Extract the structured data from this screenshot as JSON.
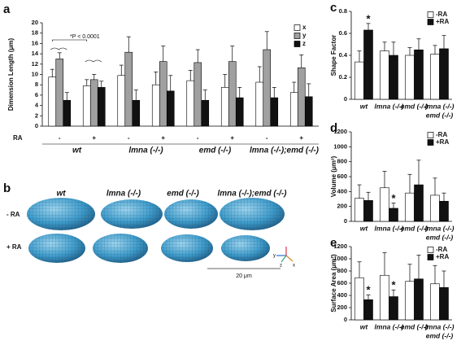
{
  "chart_data": [
    {
      "type": "bar",
      "label": "a",
      "ylabel": "Dimension Length (μm)",
      "ylim": [
        0,
        20
      ],
      "yticks": [
        0,
        2,
        4,
        6,
        8,
        10,
        12,
        14,
        16,
        18,
        20
      ],
      "groups": [
        "wt",
        "lmna (-/-)",
        "emd (-/-)",
        "lmna (-/-);emd (-/-)"
      ],
      "subcategories": [
        "-",
        "+"
      ],
      "subcategory_label": "RA",
      "annotation": "*P < 0.0001",
      "series": [
        {
          "name": "x",
          "color": "#ffffff",
          "values": [
            9.5,
            7.8,
            9.8,
            8,
            8.8,
            7.5,
            8.5,
            6.5
          ],
          "errors": [
            1.5,
            1.2,
            2,
            2.5,
            2,
            2.5,
            3,
            2
          ]
        },
        {
          "name": "y",
          "color": "#a0a0a0",
          "values": [
            13,
            9,
            14.3,
            12.5,
            12.3,
            12.5,
            14.8,
            11.3
          ],
          "errors": [
            1.2,
            1,
            3,
            3,
            2.5,
            3,
            3.5,
            2.5
          ]
        },
        {
          "name": "z",
          "color": "#111111",
          "values": [
            5,
            7.5,
            5,
            6.8,
            5,
            5.5,
            5.5,
            5.7
          ],
          "errors": [
            1.5,
            1.2,
            2,
            3,
            2,
            2,
            2,
            2.5
          ]
        }
      ]
    },
    {
      "type": "bar",
      "label": "c",
      "ylabel": "Shape Factor",
      "ylim": [
        0,
        0.8
      ],
      "yticks": [
        0,
        0.2,
        0.4,
        0.6,
        0.8
      ],
      "categories": [
        [
          "wt"
        ],
        [
          "lmna (-/-)"
        ],
        [
          "emd (-/-)"
        ],
        [
          "lmna (-/-)",
          "emd (-/-)"
        ]
      ],
      "series": [
        {
          "name": "-RA",
          "color": "#ffffff",
          "values": [
            0.34,
            0.44,
            0.4,
            0.41
          ],
          "errors": [
            0.1,
            0.08,
            0.07,
            0.08
          ],
          "significance": [
            null,
            null,
            null,
            null
          ]
        },
        {
          "name": "+RA",
          "color": "#111111",
          "values": [
            0.63,
            0.4,
            0.45,
            0.46
          ],
          "errors": [
            0.06,
            0.12,
            0.1,
            0.12
          ],
          "significance": [
            "*",
            null,
            null,
            null
          ]
        }
      ]
    },
    {
      "type": "bar",
      "label": "d",
      "ylabel": "Volume (μm³)",
      "ylim": [
        0,
        1200
      ],
      "yticks": [
        0,
        200,
        400,
        600,
        800,
        1000,
        1200
      ],
      "categories": [
        [
          "wt"
        ],
        [
          "lmna (-/-)"
        ],
        [
          "emd (-/-)"
        ],
        [
          "lmna (-/-)",
          "emd (-/-)"
        ]
      ],
      "series": [
        {
          "name": "-RA",
          "color": "#ffffff",
          "values": [
            310,
            450,
            380,
            350
          ],
          "errors": [
            180,
            220,
            250,
            230
          ],
          "significance": [
            null,
            null,
            null,
            null
          ]
        },
        {
          "name": "+RA",
          "color": "#111111",
          "values": [
            280,
            175,
            490,
            270
          ],
          "errors": [
            110,
            70,
            330,
            110
          ],
          "significance": [
            null,
            "*",
            null,
            null
          ]
        }
      ]
    },
    {
      "type": "bar",
      "label": "e",
      "ylabel": "Surface Area (μm²)",
      "ylim": [
        0,
        1200
      ],
      "yticks": [
        0,
        200,
        400,
        600,
        800,
        1000,
        1200
      ],
      "categories": [
        [
          "wt"
        ],
        [
          "lmna (-/-)"
        ],
        [
          "emd (-/-)"
        ],
        [
          "lmna (-/-)",
          "emd (-/-)"
        ]
      ],
      "series": [
        {
          "name": "-RA",
          "color": "#ffffff",
          "values": [
            690,
            730,
            630,
            590
          ],
          "errors": [
            260,
            370,
            280,
            300
          ],
          "significance": [
            null,
            null,
            null,
            null
          ]
        },
        {
          "name": "+RA",
          "color": "#111111",
          "values": [
            330,
            380,
            670,
            530
          ],
          "errors": [
            80,
            110,
            390,
            270
          ],
          "significance": [
            "*",
            "*",
            null,
            null
          ]
        }
      ]
    }
  ],
  "image_panel": {
    "label": "b",
    "columns": [
      "wt",
      "lmna (-/-)",
      "emd (-/-)",
      "lmna (-/-);emd (-/-)"
    ],
    "rows": [
      "- RA",
      "+ RA"
    ],
    "scale_bar": "20 μm",
    "axes": [
      "y",
      "z",
      "x"
    ]
  }
}
